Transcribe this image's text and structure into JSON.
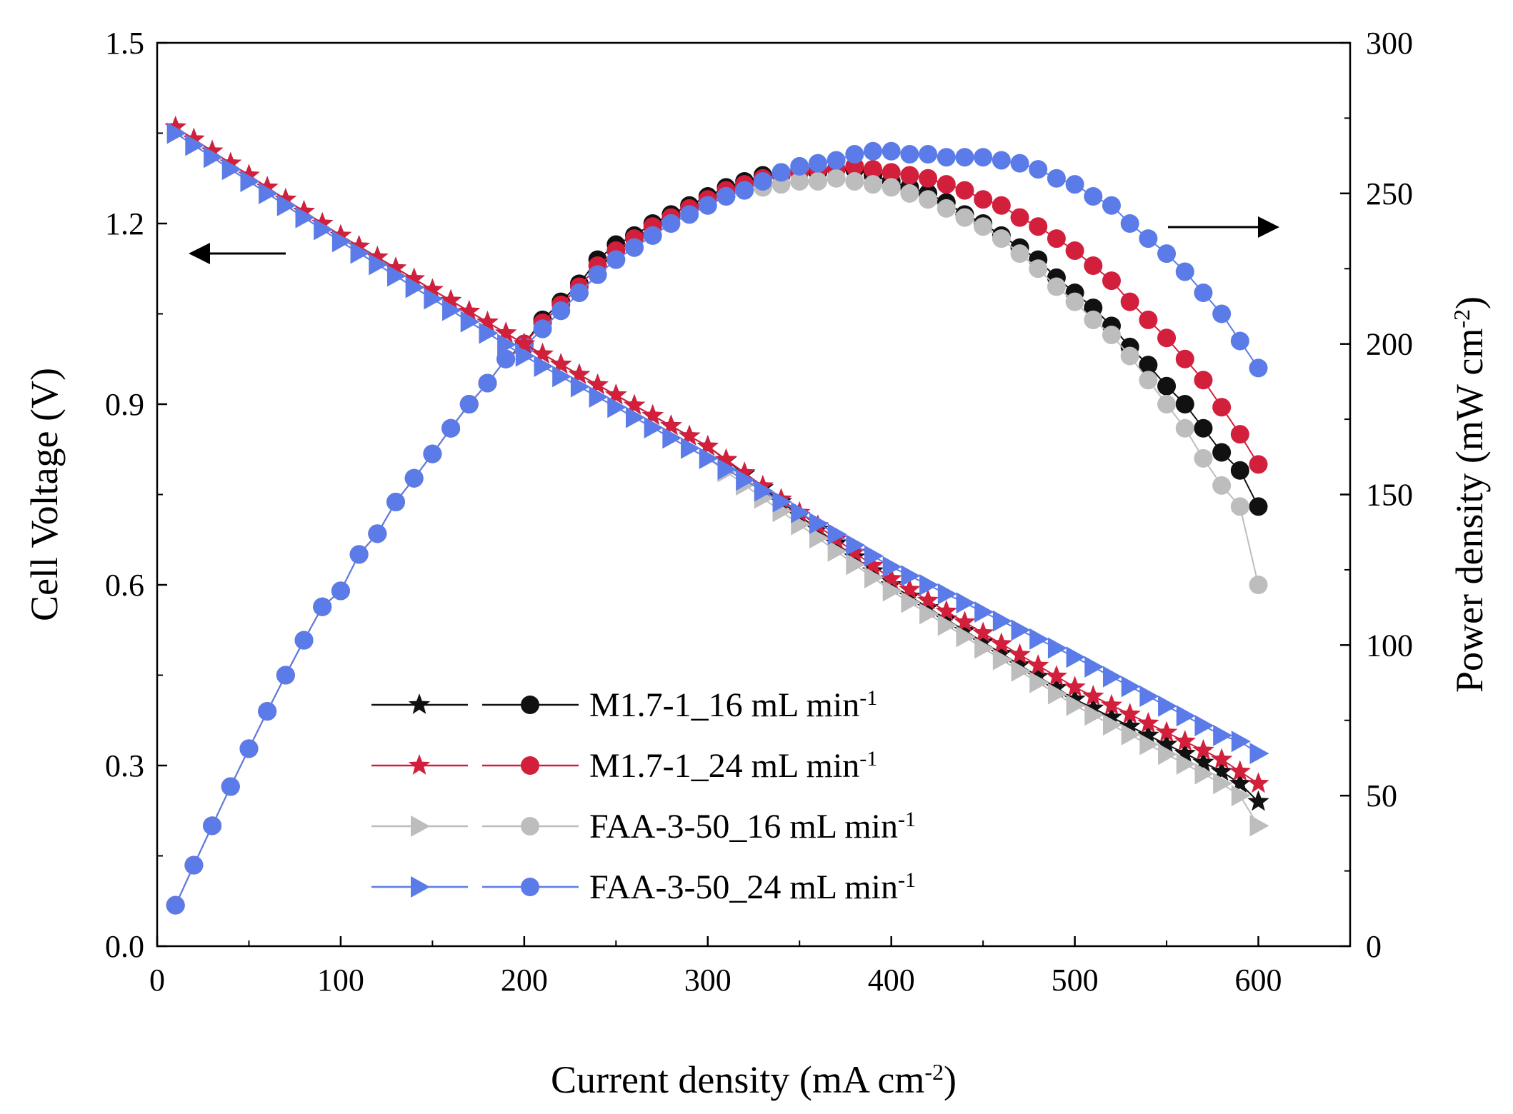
{
  "chart_data": {
    "type": "scatter",
    "xlabel": "Current density (mA cm",
    "xlabel_sup": "-2",
    "xlabel_end": ")",
    "ylabel_left": "Cell Voltage (V)",
    "ylabel_right": "Power density (mW cm",
    "ylabel_right_sup": "-2",
    "ylabel_right_end": ")",
    "xlim": [
      0,
      650
    ],
    "ylim_left": [
      0.0,
      1.5
    ],
    "ylim_right": [
      0,
      300
    ],
    "x_ticks": [
      "0",
      "100",
      "200",
      "300",
      "400",
      "500",
      "600"
    ],
    "y_left_ticks": [
      "0.0",
      "0.3",
      "0.6",
      "0.9",
      "1.2",
      "1.5"
    ],
    "y_right_ticks": [
      "0",
      "50",
      "100",
      "150",
      "200",
      "250",
      "300"
    ],
    "legend_position": "lower-left",
    "annotations": [
      {
        "type": "arrow",
        "direction": "left",
        "meaning": "voltage curves read on left axis"
      },
      {
        "type": "arrow",
        "direction": "right",
        "meaning": "power curves read on right axis"
      }
    ],
    "series": [
      {
        "name": "M1.7-1_16 mL min",
        "name_sup": "-1",
        "kind": "voltage",
        "axis": "left",
        "marker": "star",
        "color": "#111111",
        "x": [
          10,
          100,
          200,
          300,
          400,
          500,
          580,
          590,
          600
        ],
        "y": [
          1.36,
          1.18,
          1.0,
          0.83,
          0.6,
          0.41,
          0.29,
          0.27,
          0.24
        ]
      },
      {
        "name": "M1.7-1_24 mL min",
        "name_sup": "-1",
        "kind": "voltage",
        "axis": "left",
        "marker": "star",
        "color": "#d21f3c",
        "x": [
          10,
          100,
          200,
          300,
          400,
          500,
          580,
          590,
          600
        ],
        "y": [
          1.36,
          1.18,
          1.0,
          0.83,
          0.61,
          0.43,
          0.31,
          0.29,
          0.27
        ]
      },
      {
        "name": "FAA-3-50_16 mL min",
        "name_sup": "-1",
        "kind": "voltage",
        "axis": "left",
        "marker": "triangle-right",
        "color": "#bdbdbd",
        "x": [
          10,
          100,
          200,
          300,
          400,
          500,
          580,
          590,
          600
        ],
        "y": [
          1.35,
          1.17,
          0.98,
          0.81,
          0.59,
          0.4,
          0.27,
          0.25,
          0.2
        ]
      },
      {
        "name": "FAA-3-50_24 mL min",
        "name_sup": "-1",
        "kind": "voltage",
        "axis": "left",
        "marker": "triangle-right",
        "color": "#5b7be8",
        "x": [
          10,
          100,
          200,
          300,
          400,
          500,
          580,
          590,
          600
        ],
        "y": [
          1.35,
          1.17,
          0.98,
          0.81,
          0.63,
          0.48,
          0.35,
          0.34,
          0.32
        ]
      },
      {
        "name": "M1.7-1_16 mL min",
        "name_sup": "-1",
        "kind": "power",
        "axis": "right",
        "marker": "circle",
        "color": "#111111",
        "x": [
          10,
          20,
          30,
          40,
          50,
          60,
          70,
          80,
          90,
          100,
          110,
          120,
          130,
          140,
          150,
          160,
          170,
          180,
          190,
          200,
          210,
          220,
          230,
          240,
          250,
          260,
          270,
          280,
          290,
          300,
          310,
          320,
          330,
          340,
          350,
          360,
          370,
          380,
          390,
          400,
          410,
          420,
          430,
          440,
          450,
          460,
          470,
          480,
          490,
          500,
          510,
          520,
          530,
          540,
          550,
          560,
          570,
          580,
          590,
          600
        ],
        "y": [
          13.6,
          26.9,
          40,
          53,
          65.6,
          78,
          90,
          101.6,
          112.7,
          118,
          130.1,
          137,
          147.5,
          155.4,
          163.5,
          172,
          180,
          187,
          195,
          200,
          208,
          214,
          220,
          228,
          233,
          236,
          240,
          243,
          246,
          249,
          252,
          254,
          256,
          256,
          257,
          257,
          258,
          258,
          256,
          254,
          252,
          250,
          247,
          243,
          240,
          236,
          232,
          228,
          222,
          217,
          212,
          206,
          199,
          193,
          186,
          180,
          172,
          164,
          158,
          146
        ]
      },
      {
        "name": "M1.7-1_24 mL min",
        "name_sup": "-1",
        "kind": "power",
        "axis": "right",
        "marker": "circle",
        "color": "#d21f3c",
        "x": [
          10,
          20,
          30,
          40,
          50,
          60,
          70,
          80,
          90,
          100,
          110,
          120,
          130,
          140,
          150,
          160,
          170,
          180,
          190,
          200,
          210,
          220,
          230,
          240,
          250,
          260,
          270,
          280,
          290,
          300,
          310,
          320,
          330,
          340,
          350,
          360,
          370,
          380,
          390,
          400,
          410,
          420,
          430,
          440,
          450,
          460,
          470,
          480,
          490,
          500,
          510,
          520,
          530,
          540,
          550,
          560,
          570,
          580,
          590,
          600
        ],
        "y": [
          13.6,
          26.9,
          40,
          53,
          65.6,
          78,
          90,
          101.6,
          112.7,
          118,
          130.1,
          137,
          147.5,
          155.4,
          163.5,
          172,
          180,
          187,
          195,
          200,
          207,
          213,
          219,
          226,
          231,
          235,
          239,
          242,
          245,
          248,
          251,
          253,
          255,
          256,
          257,
          258,
          258,
          259,
          258,
          257,
          256,
          255,
          253,
          251,
          248,
          246,
          242,
          239,
          235,
          231,
          226,
          221,
          214,
          208,
          202,
          195,
          188,
          179,
          170,
          160
        ]
      },
      {
        "name": "FAA-3-50_16 mL min",
        "name_sup": "-1",
        "kind": "power",
        "axis": "right",
        "marker": "circle",
        "color": "#bdbdbd",
        "x": [
          10,
          20,
          30,
          40,
          50,
          60,
          70,
          80,
          90,
          100,
          110,
          120,
          130,
          140,
          150,
          160,
          170,
          180,
          190,
          200,
          210,
          220,
          230,
          240,
          250,
          260,
          270,
          280,
          290,
          300,
          310,
          320,
          330,
          340,
          350,
          360,
          370,
          380,
          390,
          400,
          410,
          420,
          430,
          440,
          450,
          460,
          470,
          480,
          490,
          500,
          510,
          520,
          530,
          540,
          550,
          560,
          570,
          580,
          590,
          600
        ],
        "y": [
          13.6,
          26.9,
          40,
          53,
          65.6,
          78,
          90,
          101.6,
          112.7,
          118,
          130.1,
          137,
          147.5,
          155.4,
          163.5,
          172,
          180,
          187,
          195,
          199,
          205,
          211,
          217,
          223,
          228,
          232,
          236,
          240,
          243,
          246,
          249,
          251,
          252,
          253,
          254,
          254,
          255,
          254,
          253,
          252,
          250,
          248,
          245,
          242,
          239,
          235,
          230,
          225,
          219,
          214,
          208,
          203,
          196,
          188,
          180,
          172,
          162,
          153,
          146,
          120
        ]
      },
      {
        "name": "FAA-3-50_24 mL min",
        "name_sup": "-1",
        "kind": "power",
        "axis": "right",
        "marker": "circle",
        "color": "#5b7be8",
        "x": [
          10,
          20,
          30,
          40,
          50,
          60,
          70,
          80,
          90,
          100,
          110,
          120,
          130,
          140,
          150,
          160,
          170,
          180,
          190,
          200,
          210,
          220,
          230,
          240,
          250,
          260,
          270,
          280,
          290,
          300,
          310,
          320,
          330,
          340,
          350,
          360,
          370,
          380,
          390,
          400,
          410,
          420,
          430,
          440,
          450,
          460,
          470,
          480,
          490,
          500,
          510,
          520,
          530,
          540,
          550,
          560,
          570,
          580,
          590,
          600
        ],
        "y": [
          13.6,
          26.9,
          40,
          53,
          65.6,
          78,
          90,
          101.6,
          112.7,
          118,
          130.1,
          137,
          147.5,
          155.4,
          163.5,
          172,
          180,
          187,
          195,
          199,
          205,
          211,
          217,
          223,
          228,
          232,
          236,
          240,
          243,
          246,
          249,
          251,
          254,
          257,
          259,
          260,
          261,
          263,
          264,
          264,
          263,
          263,
          262,
          262,
          262,
          261,
          260,
          258,
          255,
          253,
          249,
          246,
          240,
          235,
          230,
          224,
          217,
          210,
          201,
          192
        ]
      }
    ]
  }
}
